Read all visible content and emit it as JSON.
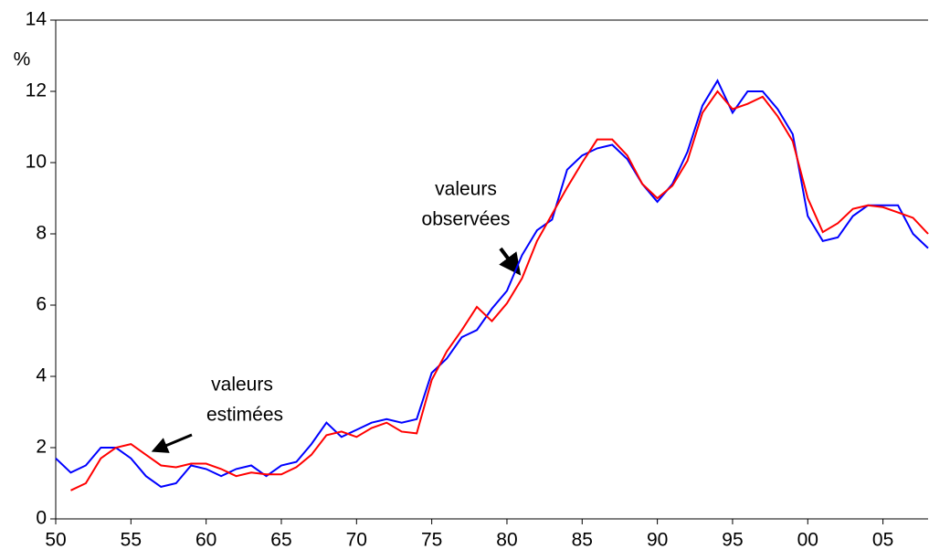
{
  "chart_data": {
    "type": "line",
    "y_unit_label": "%",
    "x": [
      1950,
      1951,
      1952,
      1953,
      1954,
      1955,
      1956,
      1957,
      1958,
      1959,
      1960,
      1961,
      1962,
      1963,
      1964,
      1965,
      1966,
      1967,
      1968,
      1969,
      1970,
      1971,
      1972,
      1973,
      1974,
      1975,
      1976,
      1977,
      1978,
      1979,
      1980,
      1981,
      1982,
      1983,
      1984,
      1985,
      1986,
      1987,
      1988,
      1989,
      1990,
      1991,
      1992,
      1993,
      1994,
      1995,
      1996,
      1997,
      1998,
      1999,
      2000,
      2001,
      2002,
      2003,
      2004,
      2005,
      2006,
      2007,
      2008
    ],
    "series": [
      {
        "color": "#0000ff",
        "values": [
          1.7,
          1.3,
          1.5,
          2.0,
          2.0,
          1.7,
          1.2,
          0.9,
          1.0,
          1.5,
          1.4,
          1.2,
          1.4,
          1.5,
          1.2,
          1.5,
          1.6,
          2.1,
          2.7,
          2.3,
          2.5,
          2.7,
          2.8,
          2.7,
          2.8,
          4.1,
          4.5,
          5.1,
          5.3,
          5.9,
          6.4,
          7.4,
          8.1,
          8.4,
          9.8,
          10.2,
          10.4,
          10.5,
          10.1,
          9.4,
          8.9,
          9.4,
          10.3,
          11.6,
          12.3,
          11.4,
          12.0,
          12.0,
          11.5,
          10.8,
          8.5,
          7.8,
          7.9,
          8.5,
          8.8,
          8.8,
          8.8,
          8.0,
          7.6
        ]
      },
      {
        "color": "#ff0000",
        "values": [
          null,
          0.8,
          1.0,
          1.7,
          2.0,
          2.1,
          1.8,
          1.5,
          1.45,
          1.55,
          1.55,
          1.4,
          1.2,
          1.3,
          1.25,
          1.25,
          1.45,
          1.8,
          2.35,
          2.45,
          2.3,
          2.55,
          2.7,
          2.45,
          2.4,
          3.9,
          4.7,
          5.3,
          5.95,
          5.55,
          6.05,
          6.75,
          7.8,
          8.55,
          9.3,
          10.0,
          10.65,
          10.65,
          10.2,
          9.4,
          9.0,
          9.35,
          10.05,
          11.4,
          12.0,
          11.5,
          11.65,
          11.85,
          11.3,
          10.6,
          9.0,
          8.05,
          8.3,
          8.7,
          8.8,
          8.75,
          8.6,
          8.45,
          8.0
        ]
      }
    ],
    "xlim": [
      1950,
      2008
    ],
    "xticks": [
      {
        "value": 1950,
        "label": "50"
      },
      {
        "value": 1955,
        "label": "55"
      },
      {
        "value": 1960,
        "label": "60"
      },
      {
        "value": 1965,
        "label": "65"
      },
      {
        "value": 1970,
        "label": "70"
      },
      {
        "value": 1975,
        "label": "75"
      },
      {
        "value": 1980,
        "label": "80"
      },
      {
        "value": 1985,
        "label": "85"
      },
      {
        "value": 1990,
        "label": "90"
      },
      {
        "value": 1995,
        "label": "95"
      },
      {
        "value": 2000,
        "label": "00"
      },
      {
        "value": 2005,
        "label": "05"
      }
    ],
    "ylim": [
      0,
      14
    ],
    "yticks": [
      0,
      2,
      4,
      6,
      8,
      10,
      12,
      14
    ],
    "annotations": [
      {
        "lines": [
          "valeurs",
          "observées"
        ]
      },
      {
        "lines": [
          "valeurs",
          "estimées"
        ]
      }
    ]
  }
}
